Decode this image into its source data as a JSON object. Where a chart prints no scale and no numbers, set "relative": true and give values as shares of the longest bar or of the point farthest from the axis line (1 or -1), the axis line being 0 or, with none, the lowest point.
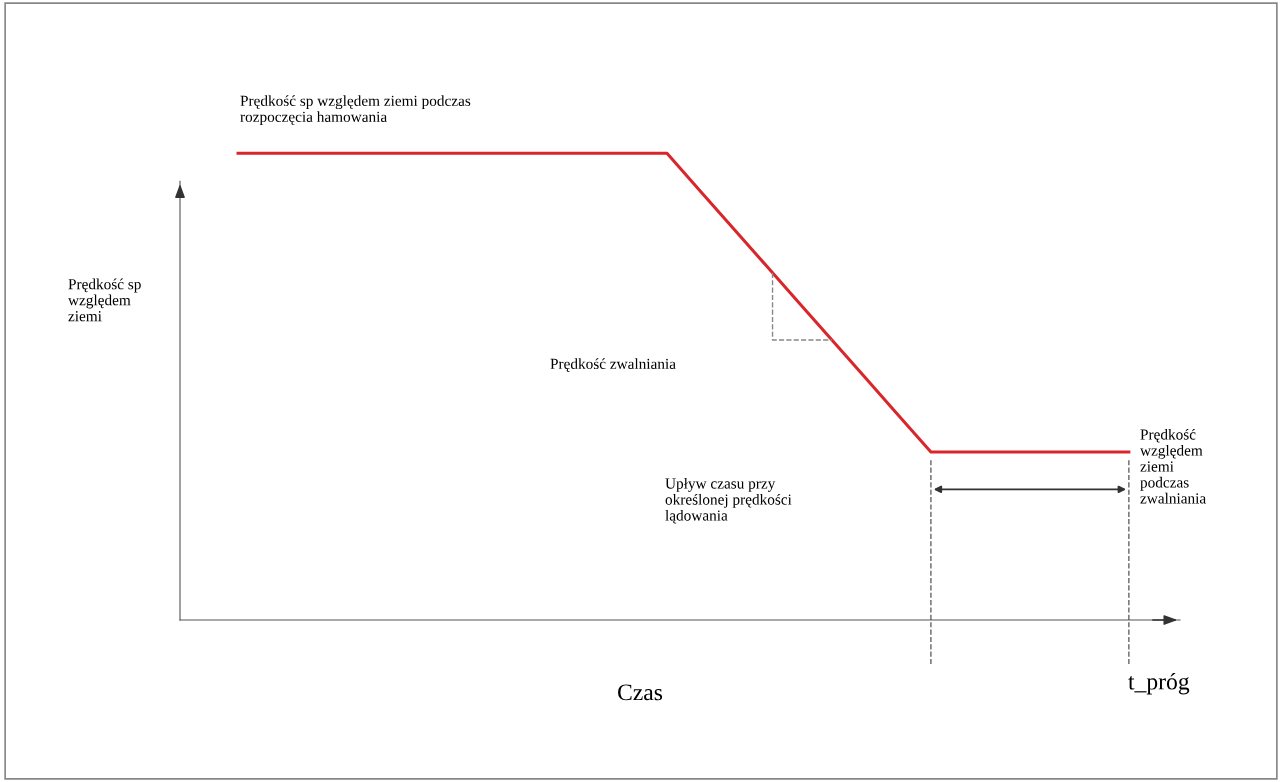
{
  "chart_data": {
    "type": "line",
    "relative": true,
    "xlabel": "Czas",
    "legend": false,
    "marker": "none",
    "line_style": "solid",
    "categories": [
      null,
      null,
      null,
      null,
      null,
      null,
      null,
      null,
      null,
      null,
      null,
      null,
      null,
      null,
      null,
      null,
      null,
      null,
      null,
      null,
      null,
      null,
      null,
      null,
      null,
      null,
      null,
      null
    ],
    "series": [
      {
        "color": "#d9262b",
        "values": [
          1,
          1,
          1,
          1,
          1,
          1,
          1,
          1,
          1,
          1,
          1,
          1,
          1,
          1,
          0.92,
          0.84,
          0.76,
          0.68,
          0.6,
          0.52,
          0.44,
          0.36,
          0.36,
          0.36,
          0.36,
          0.36,
          0.36,
          0.36
        ]
      }
    ],
    "annotations": [
      "Prędkość sp względem ziemi podczas\nrozpoczęcia hamowania",
      "Prędkość zwalniania",
      "Prędkość\nwzględem\nziemi\npodczas\nzwalniania",
      "Upływ czasu przy\nokreślonej prędkości\nlądowania",
      "t_próg",
      "Prędkość sp\nwzględem\nziemi"
    ]
  }
}
